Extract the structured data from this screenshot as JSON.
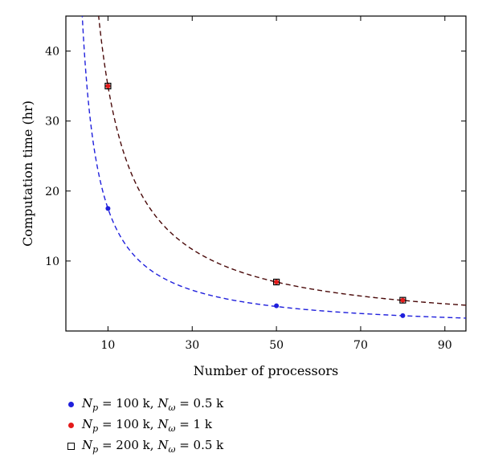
{
  "chart_data": {
    "type": "scatter",
    "xlabel": "Number of processors",
    "ylabel": "Computation time (hr)",
    "xlim": [
      0,
      95
    ],
    "ylim": [
      0,
      45
    ],
    "xticks": [
      10,
      30,
      50,
      70,
      90
    ],
    "yticks": [
      10,
      20,
      30,
      40
    ],
    "legend_position": "bottom",
    "series": [
      {
        "name": "N_p = 100 k, N_ω = 0.5 k",
        "marker": "dot",
        "color": "#1f1fdc",
        "x": [
          10,
          50,
          80
        ],
        "y": [
          17.5,
          3.6,
          2.2
        ],
        "fit": {
          "kind": "inverse",
          "coefficient": 175,
          "style": "dashed",
          "color": "#1f1fdc"
        }
      },
      {
        "name": "N_p = 100 k, N_ω = 1 k",
        "marker": "dot",
        "color": "#e41a1a",
        "x": [
          10,
          50,
          80
        ],
        "y": [
          35,
          7.0,
          4.4
        ],
        "fit": {
          "kind": "inverse",
          "coefficient": 350,
          "style": "dashed",
          "color": "#4a0a0a"
        }
      },
      {
        "name": "N_p = 200 k, N_ω = 0.5 k",
        "marker": "square",
        "color": "#000000",
        "x": [
          10,
          50,
          80
        ],
        "y": [
          35,
          7.0,
          4.4
        ]
      }
    ]
  },
  "legend": [
    {
      "marker": "dot",
      "color": "#1f1fdc",
      "n_label": "N",
      "n_sub": "p",
      "n_value": " = 100 k, ",
      "w_label": "N",
      "w_sub": "ω",
      "w_value": " = 0.5 k"
    },
    {
      "marker": "dot",
      "color": "#e41a1a",
      "n_label": "N",
      "n_sub": "p",
      "n_value": " = 100 k, ",
      "w_label": "N",
      "w_sub": "ω",
      "w_value": " = 1 k"
    },
    {
      "marker": "square",
      "color": "#000000",
      "n_label": "N",
      "n_sub": "p",
      "n_value": " = 200 k, ",
      "w_label": "N",
      "w_sub": "ω",
      "w_value": " = 0.5 k"
    }
  ]
}
